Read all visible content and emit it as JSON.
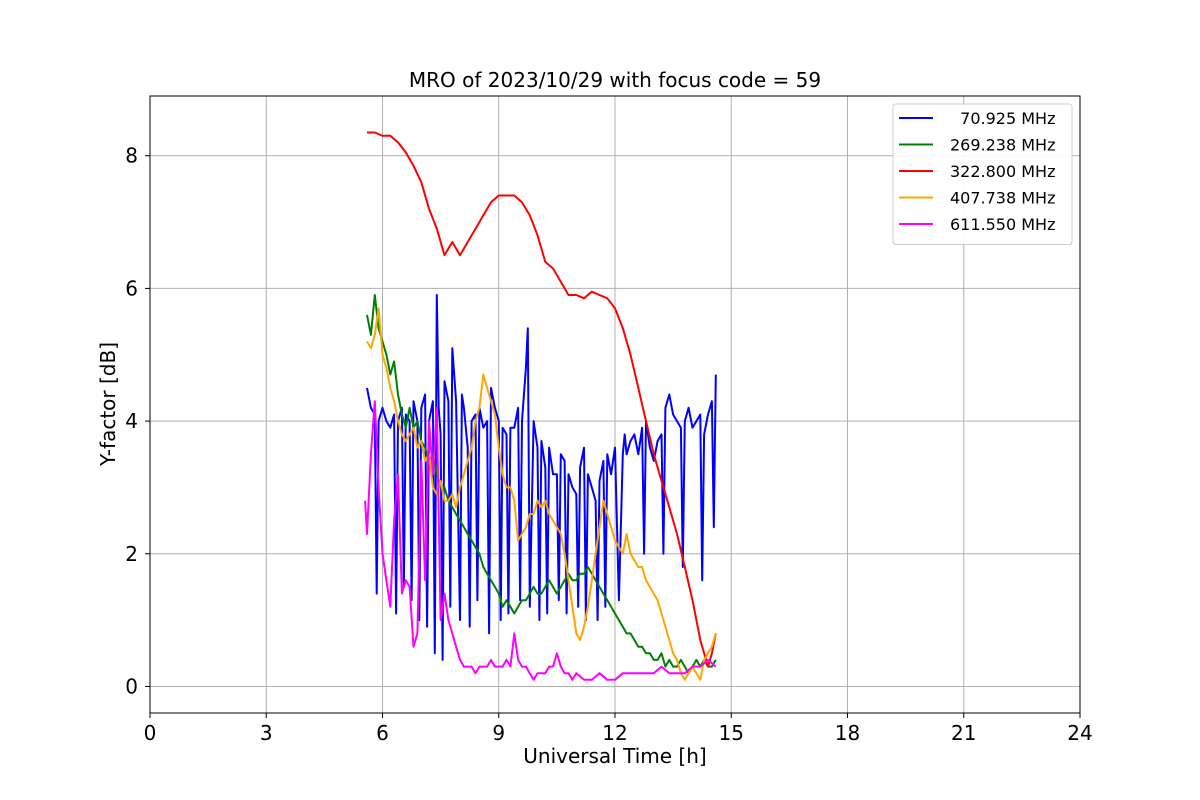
{
  "chart_data": {
    "type": "line",
    "title": "MRO of 2023/10/29 with focus code = 59",
    "xlabel": "Universal Time [h]",
    "ylabel": "Y-factor [dB]",
    "xlim": [
      0,
      24
    ],
    "ylim": [
      -0.4,
      8.9
    ],
    "xticks": [
      0,
      3,
      6,
      9,
      12,
      15,
      18,
      21,
      24
    ],
    "yticks": [
      0,
      2,
      4,
      6,
      8
    ],
    "grid": true,
    "legend_position": "top-right",
    "series": [
      {
        "name": "  70.925 MHz",
        "color": "#0000ff",
        "x": [
          5.6,
          5.7,
          5.8,
          5.85,
          5.9,
          6.0,
          6.1,
          6.2,
          6.3,
          6.35,
          6.4,
          6.5,
          6.55,
          6.6,
          6.7,
          6.75,
          6.8,
          6.9,
          6.95,
          7.0,
          7.1,
          7.15,
          7.2,
          7.3,
          7.35,
          7.4,
          7.45,
          7.5,
          7.55,
          7.6,
          7.7,
          7.75,
          7.8,
          7.9,
          8.0,
          8.05,
          8.1,
          8.2,
          8.25,
          8.3,
          8.4,
          8.45,
          8.5,
          8.6,
          8.7,
          8.75,
          8.8,
          8.9,
          9.0,
          9.05,
          9.1,
          9.2,
          9.25,
          9.3,
          9.4,
          9.5,
          9.55,
          9.6,
          9.7,
          9.75,
          9.8,
          9.9,
          10.0,
          10.05,
          10.1,
          10.2,
          10.25,
          10.3,
          10.4,
          10.5,
          10.55,
          10.6,
          10.7,
          10.75,
          10.8,
          10.9,
          11.0,
          11.05,
          11.1,
          11.2,
          11.25,
          11.3,
          11.4,
          11.5,
          11.55,
          11.6,
          11.7,
          11.75,
          11.8,
          11.9,
          12.0,
          12.1,
          12.2,
          12.25,
          12.3,
          12.4,
          12.5,
          12.6,
          12.7,
          12.75,
          12.8,
          12.9,
          13.0,
          13.1,
          13.2,
          13.25,
          13.3,
          13.4,
          13.5,
          13.6,
          13.7,
          13.75,
          13.8,
          13.9,
          14.0,
          14.1,
          14.2,
          14.25,
          14.3,
          14.4,
          14.5,
          14.55,
          14.6
        ],
        "y": [
          4.5,
          4.2,
          4.1,
          1.4,
          4.0,
          4.2,
          4.0,
          3.9,
          4.1,
          1.1,
          4.0,
          4.2,
          1.5,
          4.1,
          4.0,
          1.3,
          4.3,
          4.0,
          1.0,
          4.2,
          4.4,
          0.9,
          4.0,
          4.3,
          0.5,
          5.9,
          4.2,
          3.8,
          0.4,
          4.6,
          4.3,
          1.2,
          5.1,
          4.3,
          1.0,
          4.4,
          4.2,
          3.6,
          0.9,
          4.0,
          4.1,
          1.3,
          4.2,
          3.9,
          4.0,
          0.8,
          4.5,
          4.2,
          4.0,
          1.0,
          3.9,
          3.8,
          1.1,
          3.9,
          3.9,
          4.2,
          1.3,
          4.0,
          4.8,
          5.4,
          1.2,
          4.0,
          3.6,
          1.0,
          3.7,
          3.3,
          1.1,
          3.6,
          3.2,
          3.2,
          1.3,
          3.5,
          3.4,
          1.1,
          3.2,
          3.0,
          2.9,
          1.2,
          3.3,
          3.6,
          1.0,
          3.2,
          3.0,
          2.8,
          1.0,
          3.1,
          3.4,
          1.2,
          3.5,
          3.2,
          3.6,
          1.3,
          3.5,
          3.8,
          3.5,
          3.7,
          3.8,
          3.5,
          3.9,
          2.0,
          4.0,
          3.6,
          3.4,
          3.7,
          3.8,
          2.0,
          4.2,
          4.4,
          4.1,
          4.0,
          3.9,
          1.8,
          4.0,
          4.2,
          3.9,
          4.0,
          4.1,
          1.6,
          3.8,
          4.1,
          4.3,
          2.4,
          4.7
        ]
      },
      {
        "name": "269.238 MHz",
        "color": "#008000",
        "x": [
          5.6,
          5.7,
          5.8,
          5.9,
          6.0,
          6.1,
          6.2,
          6.3,
          6.4,
          6.5,
          6.6,
          6.7,
          6.8,
          6.9,
          7.0,
          7.1,
          7.2,
          7.3,
          7.4,
          7.5,
          7.6,
          7.7,
          7.8,
          7.9,
          8.0,
          8.1,
          8.2,
          8.3,
          8.4,
          8.5,
          8.6,
          8.7,
          8.8,
          8.9,
          9.0,
          9.1,
          9.2,
          9.3,
          9.4,
          9.5,
          9.6,
          9.7,
          9.8,
          9.9,
          10.0,
          10.1,
          10.2,
          10.3,
          10.4,
          10.5,
          10.6,
          10.7,
          10.8,
          10.9,
          11.0,
          11.1,
          11.2,
          11.3,
          11.4,
          11.5,
          11.6,
          11.7,
          11.8,
          11.9,
          12.0,
          12.1,
          12.2,
          12.3,
          12.4,
          12.5,
          12.6,
          12.7,
          12.8,
          12.9,
          13.0,
          13.1,
          13.2,
          13.3,
          13.4,
          13.5,
          13.6,
          13.7,
          13.8,
          13.9,
          14.0,
          14.1,
          14.2,
          14.3,
          14.4,
          14.5,
          14.6
        ],
        "y": [
          5.6,
          5.3,
          5.9,
          5.4,
          5.2,
          5.0,
          4.7,
          4.9,
          4.4,
          4.1,
          3.9,
          4.2,
          3.9,
          4.0,
          3.7,
          3.6,
          3.4,
          3.5,
          3.2,
          3.0,
          3.0,
          2.8,
          2.7,
          2.6,
          2.5,
          2.4,
          2.3,
          2.2,
          2.1,
          2.0,
          1.8,
          1.7,
          1.6,
          1.5,
          1.4,
          1.2,
          1.3,
          1.2,
          1.1,
          1.2,
          1.3,
          1.3,
          1.4,
          1.5,
          1.4,
          1.4,
          1.5,
          1.6,
          1.5,
          1.4,
          1.5,
          1.6,
          1.7,
          1.6,
          1.6,
          1.7,
          1.7,
          1.8,
          1.7,
          1.6,
          1.5,
          1.4,
          1.3,
          1.2,
          1.1,
          1.0,
          0.9,
          0.8,
          0.8,
          0.7,
          0.6,
          0.6,
          0.5,
          0.5,
          0.4,
          0.4,
          0.5,
          0.3,
          0.4,
          0.3,
          0.3,
          0.4,
          0.3,
          0.2,
          0.3,
          0.4,
          0.3,
          0.4,
          0.3,
          0.3,
          0.4
        ]
      },
      {
        "name": "322.800 MHz",
        "color": "#ff0000",
        "x": [
          5.6,
          5.8,
          6.0,
          6.2,
          6.4,
          6.6,
          6.8,
          7.0,
          7.2,
          7.4,
          7.6,
          7.8,
          8.0,
          8.2,
          8.4,
          8.6,
          8.8,
          9.0,
          9.2,
          9.4,
          9.6,
          9.8,
          10.0,
          10.2,
          10.4,
          10.6,
          10.8,
          11.0,
          11.2,
          11.4,
          11.6,
          11.8,
          12.0,
          12.2,
          12.4,
          12.6,
          12.8,
          13.0,
          13.2,
          13.4,
          13.6,
          13.8,
          14.0,
          14.2,
          14.4,
          14.5,
          14.6
        ],
        "y": [
          8.35,
          8.35,
          8.3,
          8.3,
          8.2,
          8.05,
          7.85,
          7.6,
          7.2,
          6.9,
          6.5,
          6.7,
          6.5,
          6.7,
          6.9,
          7.1,
          7.3,
          7.4,
          7.4,
          7.4,
          7.3,
          7.1,
          6.8,
          6.4,
          6.3,
          6.1,
          5.9,
          5.9,
          5.85,
          5.95,
          5.9,
          5.85,
          5.7,
          5.4,
          5.0,
          4.5,
          4.0,
          3.5,
          3.1,
          2.7,
          2.3,
          1.8,
          1.3,
          0.7,
          0.3,
          0.5,
          0.8
        ]
      },
      {
        "name": "407.738 MHz",
        "color": "#ffa500",
        "x": [
          5.6,
          5.7,
          5.8,
          5.9,
          6.0,
          6.1,
          6.2,
          6.3,
          6.4,
          6.5,
          6.6,
          6.7,
          6.8,
          6.9,
          7.0,
          7.1,
          7.2,
          7.3,
          7.4,
          7.5,
          7.6,
          7.7,
          7.8,
          7.9,
          8.0,
          8.1,
          8.2,
          8.3,
          8.4,
          8.5,
          8.6,
          8.7,
          8.8,
          8.9,
          9.0,
          9.1,
          9.2,
          9.3,
          9.4,
          9.5,
          9.6,
          9.7,
          9.8,
          9.9,
          10.0,
          10.1,
          10.2,
          10.3,
          10.4,
          10.5,
          10.6,
          10.7,
          10.8,
          10.9,
          11.0,
          11.1,
          11.2,
          11.3,
          11.4,
          11.5,
          11.6,
          11.7,
          11.8,
          11.9,
          12.0,
          12.1,
          12.2,
          12.3,
          12.4,
          12.5,
          12.6,
          12.7,
          12.8,
          12.9,
          13.0,
          13.1,
          13.2,
          13.3,
          13.4,
          13.5,
          13.6,
          13.7,
          13.8,
          13.9,
          14.0,
          14.1,
          14.2,
          14.3,
          14.4,
          14.5,
          14.6
        ],
        "y": [
          5.2,
          5.1,
          5.3,
          5.7,
          5.0,
          4.8,
          4.5,
          4.3,
          4.0,
          3.8,
          3.7,
          3.8,
          3.9,
          3.6,
          3.7,
          3.4,
          3.5,
          3.0,
          2.9,
          3.1,
          2.8,
          2.8,
          2.9,
          2.7,
          3.0,
          3.2,
          3.4,
          3.6,
          4.0,
          4.2,
          4.7,
          4.5,
          4.3,
          4.1,
          3.6,
          3.2,
          3.0,
          3.0,
          2.8,
          2.2,
          2.3,
          2.4,
          2.6,
          2.6,
          2.8,
          2.7,
          2.8,
          2.6,
          2.5,
          2.4,
          2.3,
          2.0,
          1.6,
          1.2,
          0.8,
          0.7,
          0.9,
          1.2,
          1.6,
          2.0,
          2.4,
          2.8,
          2.6,
          2.4,
          2.2,
          2.1,
          2.0,
          2.3,
          2.0,
          1.9,
          1.8,
          1.8,
          1.6,
          1.5,
          1.4,
          1.3,
          1.1,
          0.9,
          0.7,
          0.5,
          0.4,
          0.2,
          0.1,
          0.2,
          0.3,
          0.2,
          0.1,
          0.4,
          0.5,
          0.6,
          0.8
        ]
      },
      {
        "name": "611.550 MHz",
        "color": "#ff00ff",
        "x": [
          5.55,
          5.6,
          5.7,
          5.8,
          5.9,
          6.0,
          6.1,
          6.2,
          6.3,
          6.4,
          6.5,
          6.6,
          6.7,
          6.8,
          6.9,
          7.0,
          7.1,
          7.2,
          7.3,
          7.4,
          7.5,
          7.6,
          7.7,
          7.8,
          7.9,
          8.0,
          8.1,
          8.2,
          8.3,
          8.4,
          8.5,
          8.6,
          8.7,
          8.8,
          8.9,
          9.0,
          9.1,
          9.2,
          9.3,
          9.4,
          9.5,
          9.6,
          9.7,
          9.8,
          9.9,
          10.0,
          10.1,
          10.2,
          10.3,
          10.4,
          10.5,
          10.6,
          10.7,
          10.8,
          10.9,
          11.0,
          11.2,
          11.4,
          11.6,
          11.8,
          12.0,
          12.2,
          12.4,
          12.6,
          12.8,
          13.0,
          13.2,
          13.4,
          13.6,
          13.8,
          14.0,
          14.2,
          14.4,
          14.6
        ],
        "y": [
          2.8,
          2.3,
          3.5,
          4.3,
          3.0,
          2.0,
          1.6,
          1.2,
          2.5,
          3.2,
          1.4,
          1.6,
          1.5,
          0.6,
          0.8,
          3.4,
          1.6,
          4.0,
          3.2,
          4.2,
          1.0,
          1.4,
          1.0,
          0.8,
          0.6,
          0.4,
          0.3,
          0.3,
          0.3,
          0.2,
          0.3,
          0.3,
          0.3,
          0.4,
          0.3,
          0.3,
          0.3,
          0.4,
          0.3,
          0.8,
          0.4,
          0.3,
          0.3,
          0.2,
          0.1,
          0.2,
          0.2,
          0.2,
          0.3,
          0.3,
          0.5,
          0.3,
          0.2,
          0.2,
          0.1,
          0.2,
          0.1,
          0.1,
          0.2,
          0.1,
          0.1,
          0.2,
          0.2,
          0.2,
          0.2,
          0.2,
          0.3,
          0.2,
          0.2,
          0.2,
          0.3,
          0.3,
          0.4,
          0.3
        ]
      }
    ]
  }
}
